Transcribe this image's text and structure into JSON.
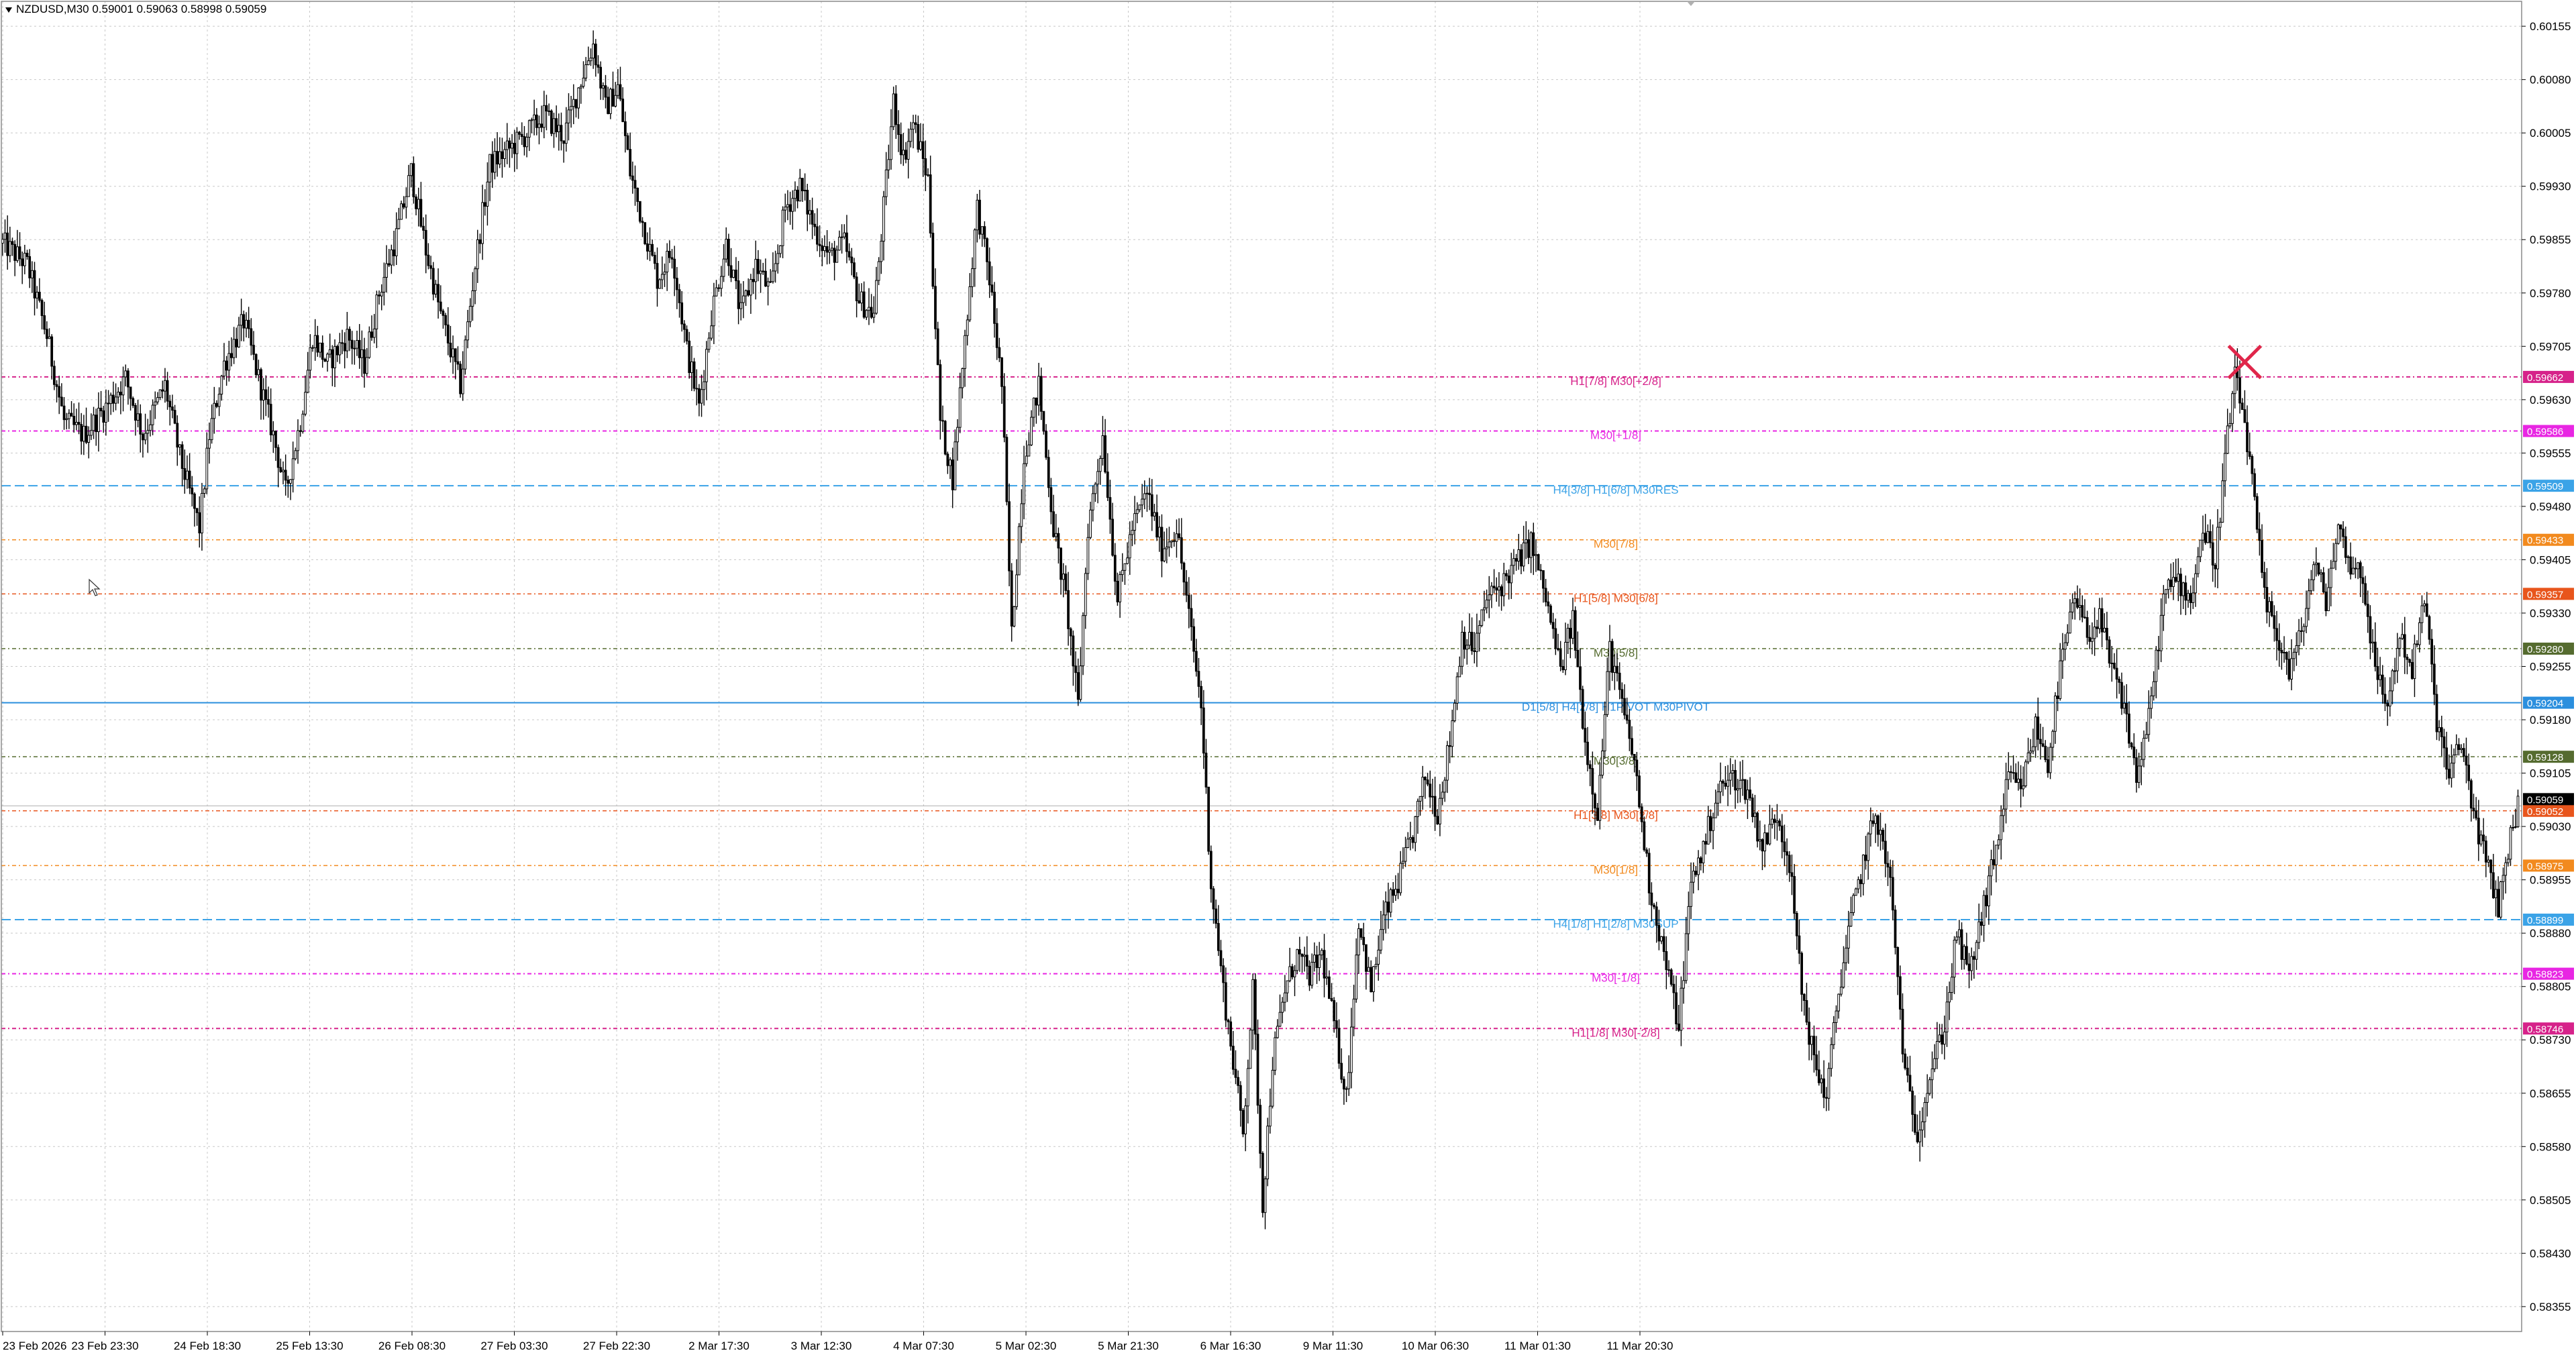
{
  "header": {
    "symbol_line": "NZDUSD,M30  0.59001 0.59063 0.58998 0.59059"
  },
  "colors": {
    "background": "#ffffff",
    "grid": "#c8c8c8",
    "candle": "#000000",
    "marker_cross": "#e0264a"
  },
  "chart_data": {
    "type": "candlestick",
    "symbol": "NZDUSD",
    "timeframe": "M30",
    "last_ohlc": {
      "open": 0.59001,
      "high": 0.59063,
      "low": 0.58998,
      "close": 0.59059
    },
    "y_range": [
      0.5832,
      0.6019
    ],
    "grid": true,
    "y_ticks": [
      "0.60155",
      "0.60080",
      "0.60005",
      "0.59930",
      "0.59855",
      "0.59780",
      "0.59705",
      "0.59630",
      "0.59555",
      "0.59480",
      "0.59405",
      "0.59330",
      "0.59255",
      "0.59180",
      "0.59105",
      "0.59030",
      "0.58955",
      "0.58880",
      "0.58805",
      "0.58730",
      "0.58655",
      "0.58580",
      "0.58505",
      "0.58430",
      "0.58355"
    ],
    "x_labels": [
      "23 Feb 2026",
      "23 Feb 23:30",
      "24 Feb 18:30",
      "25 Feb 13:30",
      "26 Feb 08:30",
      "27 Feb 03:30",
      "27 Feb 22:30",
      "2 Mar 17:30",
      "3 Mar 12:30",
      "4 Mar 07:30",
      "5 Mar 02:30",
      "5 Mar 21:30",
      "6 Mar 16:30",
      "9 Mar 11:30",
      "10 Mar 06:30",
      "11 Mar 01:30",
      "11 Mar 20:30"
    ],
    "price_path": [
      [
        0,
        0.5985
      ],
      [
        10,
        0.5982
      ],
      [
        18,
        0.5972
      ],
      [
        25,
        0.596
      ],
      [
        33,
        0.5958
      ],
      [
        42,
        0.5962
      ],
      [
        50,
        0.5966
      ],
      [
        57,
        0.5958
      ],
      [
        66,
        0.5965
      ],
      [
        72,
        0.5955
      ],
      [
        80,
        0.5945
      ],
      [
        84,
        0.5958
      ],
      [
        90,
        0.5968
      ],
      [
        98,
        0.5974
      ],
      [
        104,
        0.5966
      ],
      [
        110,
        0.5958
      ],
      [
        115,
        0.595
      ],
      [
        121,
        0.596
      ],
      [
        126,
        0.5972
      ],
      [
        132,
        0.5968
      ],
      [
        140,
        0.5972
      ],
      [
        147,
        0.5968
      ],
      [
        153,
        0.5978
      ],
      [
        160,
        0.5986
      ],
      [
        166,
        0.5995
      ],
      [
        172,
        0.5984
      ],
      [
        178,
        0.5975
      ],
      [
        186,
        0.5965
      ],
      [
        192,
        0.5982
      ],
      [
        198,
        0.5996
      ],
      [
        205,
        0.5998
      ],
      [
        212,
        0.6
      ],
      [
        220,
        0.6003
      ],
      [
        228,
        0.6
      ],
      [
        235,
        0.6008
      ],
      [
        240,
        0.6013
      ],
      [
        245,
        0.6004
      ],
      [
        250,
        0.6007
      ],
      [
        255,
        0.5995
      ],
      [
        260,
        0.5988
      ],
      [
        266,
        0.598
      ],
      [
        272,
        0.5984
      ],
      [
        278,
        0.597
      ],
      [
        283,
        0.5962
      ],
      [
        288,
        0.5975
      ],
      [
        294,
        0.5985
      ],
      [
        300,
        0.5975
      ],
      [
        306,
        0.5982
      ],
      [
        312,
        0.5978
      ],
      [
        318,
        0.599
      ],
      [
        324,
        0.5993
      ],
      [
        330,
        0.5987
      ],
      [
        336,
        0.5983
      ],
      [
        342,
        0.5985
      ],
      [
        348,
        0.5977
      ],
      [
        354,
        0.5975
      ],
      [
        358,
        0.599
      ],
      [
        362,
        0.6005
      ],
      [
        366,
        0.5997
      ],
      [
        370,
        0.6002
      ],
      [
        376,
        0.5994
      ],
      [
        381,
        0.596
      ],
      [
        386,
        0.5952
      ],
      [
        390,
        0.5968
      ],
      [
        396,
        0.599
      ],
      [
        401,
        0.598
      ],
      [
        406,
        0.5965
      ],
      [
        410,
        0.593
      ],
      [
        415,
        0.5955
      ],
      [
        421,
        0.5965
      ],
      [
        427,
        0.5945
      ],
      [
        432,
        0.5935
      ],
      [
        437,
        0.592
      ],
      [
        441,
        0.5945
      ],
      [
        447,
        0.5958
      ],
      [
        453,
        0.5935
      ],
      [
        459,
        0.5945
      ],
      [
        465,
        0.595
      ],
      [
        471,
        0.5942
      ],
      [
        477,
        0.5945
      ],
      [
        483,
        0.593
      ],
      [
        487,
        0.592
      ],
      [
        491,
        0.5895
      ],
      [
        496,
        0.588
      ],
      [
        500,
        0.587
      ],
      [
        504,
        0.586
      ],
      [
        508,
        0.588
      ],
      [
        512,
        0.585
      ],
      [
        516,
        0.587
      ],
      [
        521,
        0.588
      ],
      [
        526,
        0.5885
      ],
      [
        531,
        0.5882
      ],
      [
        536,
        0.5885
      ],
      [
        541,
        0.5875
      ],
      [
        546,
        0.5865
      ],
      [
        551,
        0.589
      ],
      [
        556,
        0.588
      ],
      [
        561,
        0.589
      ],
      [
        567,
        0.5895
      ],
      [
        573,
        0.5902
      ],
      [
        578,
        0.591
      ],
      [
        583,
        0.5905
      ],
      [
        588,
        0.5915
      ],
      [
        593,
        0.593
      ],
      [
        598,
        0.5928
      ],
      [
        603,
        0.5935
      ],
      [
        609,
        0.5937
      ],
      [
        615,
        0.594
      ],
      [
        621,
        0.5943
      ],
      [
        627,
        0.5935
      ],
      [
        633,
        0.5925
      ],
      [
        638,
        0.5932
      ],
      [
        643,
        0.5915
      ],
      [
        648,
        0.5905
      ],
      [
        653,
        0.5928
      ],
      [
        658,
        0.592
      ],
      [
        663,
        0.5912
      ],
      [
        669,
        0.5895
      ],
      [
        675,
        0.5885
      ],
      [
        681,
        0.5875
      ],
      [
        686,
        0.5895
      ],
      [
        691,
        0.59
      ],
      [
        697,
        0.5908
      ],
      [
        703,
        0.591
      ],
      [
        709,
        0.5908
      ],
      [
        715,
        0.59
      ],
      [
        721,
        0.5905
      ],
      [
        726,
        0.5898
      ],
      [
        731,
        0.588
      ],
      [
        736,
        0.587
      ],
      [
        741,
        0.5865
      ],
      [
        746,
        0.588
      ],
      [
        751,
        0.589
      ],
      [
        756,
        0.5898
      ],
      [
        761,
        0.5905
      ],
      [
        767,
        0.5895
      ],
      [
        773,
        0.5868
      ],
      [
        778,
        0.586
      ],
      [
        783,
        0.5868
      ],
      [
        789,
        0.5875
      ],
      [
        794,
        0.5888
      ],
      [
        799,
        0.5882
      ],
      [
        804,
        0.589
      ],
      [
        810,
        0.59
      ],
      [
        815,
        0.591
      ],
      [
        820,
        0.5908
      ],
      [
        826,
        0.5917
      ],
      [
        831,
        0.5912
      ],
      [
        836,
        0.5925
      ],
      [
        842,
        0.5935
      ],
      [
        847,
        0.593
      ],
      [
        852,
        0.5932
      ],
      [
        857,
        0.5925
      ],
      [
        862,
        0.592
      ],
      [
        867,
        0.591
      ],
      [
        872,
        0.5918
      ],
      [
        878,
        0.5935
      ],
      [
        883,
        0.5938
      ],
      [
        889,
        0.5935
      ],
      [
        894,
        0.5945
      ],
      [
        899,
        0.594
      ],
      [
        903,
        0.5955
      ],
      [
        907,
        0.5966
      ],
      [
        911,
        0.596
      ],
      [
        915,
        0.5948
      ],
      [
        919,
        0.5935
      ],
      [
        924,
        0.593
      ],
      [
        929,
        0.5925
      ],
      [
        934,
        0.593
      ],
      [
        939,
        0.594
      ],
      [
        944,
        0.5935
      ],
      [
        949,
        0.5945
      ],
      [
        954,
        0.594
      ],
      [
        959,
        0.5938
      ],
      [
        964,
        0.5925
      ],
      [
        969,
        0.592
      ],
      [
        974,
        0.593
      ],
      [
        979,
        0.5925
      ],
      [
        984,
        0.5935
      ],
      [
        989,
        0.5918
      ],
      [
        994,
        0.591
      ],
      [
        999,
        0.5915
      ],
      [
        1004,
        0.5905
      ],
      [
        1009,
        0.5898
      ],
      [
        1014,
        0.5892
      ],
      [
        1018,
        0.59
      ],
      [
        1022,
        0.5906
      ]
    ],
    "levels": [
      {
        "label": "H1[7/8] M30[+2/8]",
        "price_tag": "0.59662",
        "price": 0.59662,
        "color": "#d6228a",
        "dash": "6,4,2,4",
        "width": 2
      },
      {
        "label": "M30[+1/8]",
        "price_tag": "0.59586",
        "price": 0.59586,
        "color": "#e826e3",
        "dash": "6,4,2,4",
        "width": 2
      },
      {
        "label": "H4[3/8] H1[6/8] M30RES",
        "price_tag": "0.59509",
        "price": 0.59509,
        "color": "#3ba3e7",
        "dash": "14,6",
        "width": 2
      },
      {
        "label": "M30[7/8]",
        "price_tag": "0.59433",
        "price": 0.59433,
        "color": "#f28a1e",
        "dash": "6,4,2,4",
        "width": 1.5
      },
      {
        "label": "H1[5/8] M30[6/8]",
        "price_tag": "0.59357",
        "price": 0.59357,
        "color": "#e8551c",
        "dash": "6,4,2,4",
        "width": 1.5
      },
      {
        "label": "M30[5/8]",
        "price_tag": "0.59280",
        "price": 0.5928,
        "color": "#556b2f",
        "dash": "6,4,2,4",
        "width": 1.5
      },
      {
        "label": "D1[5/8] H4[2/8] H1PIVOT M30PIVOT",
        "price_tag": "0.59204",
        "price": 0.59204,
        "color": "#2b8fde",
        "dash": "",
        "width": 2
      },
      {
        "label": "M30[3/8]",
        "price_tag": "0.59128",
        "price": 0.59128,
        "color": "#556b2f",
        "dash": "6,4,2,4",
        "width": 1.5
      },
      {
        "label": "H1[3/8] M30[2/8]",
        "price_tag": "0.59052",
        "price": 0.59052,
        "color": "#e8551c",
        "dash": "6,4,2,4",
        "width": 1.5
      },
      {
        "label": "M30[1/8]",
        "price_tag": "0.58975",
        "price": 0.58975,
        "color": "#f28a1e",
        "dash": "6,4,2,4",
        "width": 1.5
      },
      {
        "label": "H4[1/8] H1[2/8] M30SUP",
        "price_tag": "0.58899",
        "price": 0.58899,
        "color": "#3ba3e7",
        "dash": "14,6",
        "width": 2
      },
      {
        "label": "M30[-1/8]",
        "price_tag": "0.58823",
        "price": 0.58823,
        "color": "#e826e3",
        "dash": "6,4,2,4",
        "width": 2
      },
      {
        "label": "H1[1/8] M30[-2/8]",
        "price_tag": "0.58746",
        "price": 0.58746,
        "color": "#d6228a",
        "dash": "6,4,2,4",
        "width": 2
      }
    ],
    "current_price_tag": {
      "price_tag": "0.59059",
      "price": 0.59059,
      "color": "#000000"
    },
    "marker": {
      "shape": "cross",
      "price": 0.59683,
      "bar": 911,
      "color": "#e0264a"
    }
  }
}
